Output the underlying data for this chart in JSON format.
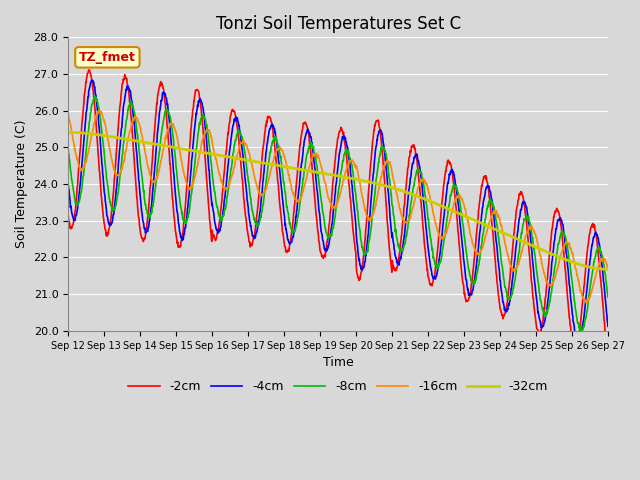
{
  "title": "Tonzi Soil Temperatures Set C",
  "xlabel": "Time",
  "ylabel": "Soil Temperature (C)",
  "annotation": "TZ_fmet",
  "ylim": [
    20.0,
    28.0
  ],
  "yticks": [
    20.0,
    21.0,
    22.0,
    23.0,
    24.0,
    25.0,
    26.0,
    27.0,
    28.0
  ],
  "xtick_labels": [
    "Sep 12",
    "Sep 13",
    "Sep 14",
    "Sep 15",
    "Sep 16",
    "Sep 17",
    "Sep 18",
    "Sep 19",
    "Sep 20",
    "Sep 21",
    "Sep 22",
    "Sep 23",
    "Sep 24",
    "Sep 25",
    "Sep 26",
    "Sep 27"
  ],
  "series_colors": [
    "#ff0000",
    "#0000ff",
    "#00bb00",
    "#ff8800",
    "#cccc00"
  ],
  "series_labels": [
    "-2cm",
    "-4cm",
    "-8cm",
    "-16cm",
    "-32cm"
  ],
  "bg_color": "#d8d8d8",
  "grid_color": "#ffffff",
  "title_fontsize": 12,
  "legend_fontsize": 9,
  "annotation_color": "#cc0000",
  "annotation_bg": "#ffffcc",
  "annotation_edge": "#cc8800"
}
